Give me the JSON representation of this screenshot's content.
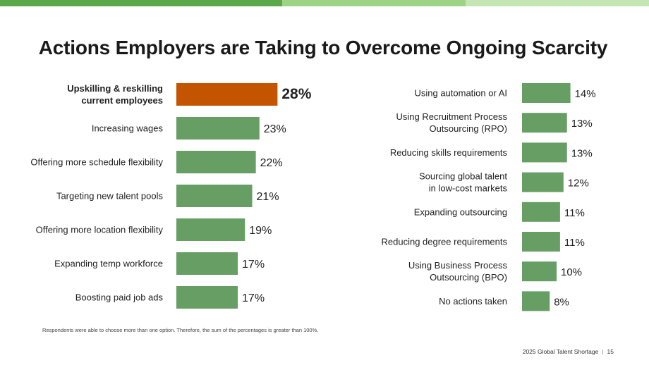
{
  "title": "Actions Employers are Taking to Overcome Ongoing Scarcity",
  "footnote": "Respondents were able to choose more than one option. Therefore, the sum of the percentages is greater than 100%.",
  "footer": {
    "report": "2025 Global Talent Shortage",
    "page": "15"
  },
  "colors": {
    "bar": "#669e63",
    "highlight": "#c45500",
    "band": [
      "#5ba84a",
      "#9cd384",
      "#c4e6b4"
    ]
  },
  "chart_data": [
    {
      "type": "bar",
      "orientation": "horizontal",
      "categories": [
        [
          "Upskilling & reskilling",
          "current employees"
        ],
        [
          "Increasing wages"
        ],
        [
          "Offering more schedule flexibility"
        ],
        [
          "Targeting new talent pools"
        ],
        [
          "Offering more location flexibility"
        ],
        [
          "Expanding temp workforce"
        ],
        [
          "Boosting paid job ads"
        ]
      ],
      "values": [
        28,
        23,
        22,
        21,
        19,
        17,
        17
      ],
      "labels": [
        "28%",
        "23%",
        "22%",
        "21%",
        "19%",
        "17%",
        "17%"
      ],
      "highlight_index": 0
    },
    {
      "type": "bar",
      "orientation": "horizontal",
      "categories": [
        [
          "Using automation or AI"
        ],
        [
          "Using Recruitment Process",
          "Outsourcing (RPO)"
        ],
        [
          "Reducing skills requirements"
        ],
        [
          "Sourcing global talent",
          "in low-cost markets"
        ],
        [
          "Expanding outsourcing"
        ],
        [
          "Reducing degree requirements"
        ],
        [
          "Using Business Process",
          "Outsourcing (BPO)"
        ],
        [
          "No actions taken"
        ]
      ],
      "values": [
        14,
        13,
        13,
        12,
        11,
        11,
        10,
        8
      ],
      "labels": [
        "14%",
        "13%",
        "13%",
        "12%",
        "11%",
        "11%",
        "10%",
        "8%"
      ]
    }
  ]
}
